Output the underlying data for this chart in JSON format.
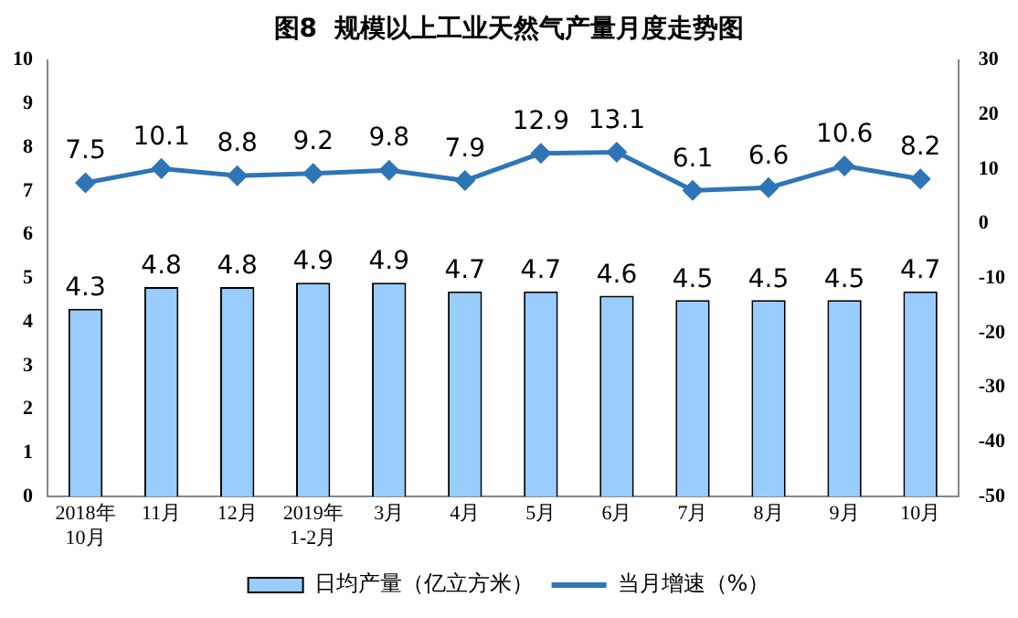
{
  "chart_data": {
    "type": "bar",
    "title": "图8  规模以上工业天然气产量月度走势图",
    "categories": [
      "2018年\n10月",
      "11月",
      "12月",
      "2019年\n1-2月",
      "3月",
      "4月",
      "5月",
      "6月",
      "7月",
      "8月",
      "9月",
      "10月"
    ],
    "series": [
      {
        "name": "日均产量（亿立方米）",
        "color": "#99ccff",
        "values": [
          4.3,
          4.8,
          4.8,
          4.9,
          4.9,
          4.7,
          4.7,
          4.6,
          4.5,
          4.5,
          4.5,
          4.7
        ]
      },
      {
        "name": "当月增速（%）",
        "type": "line",
        "axis": "y2",
        "color": "#2e75b6",
        "marker": "diamond",
        "values": [
          7.5,
          10.1,
          8.8,
          9.2,
          9.8,
          7.9,
          12.9,
          13.1,
          6.1,
          6.6,
          10.6,
          8.2
        ]
      }
    ],
    "ylim": [
      0,
      10
    ],
    "yticks": [
      0,
      1,
      2,
      3,
      4,
      5,
      6,
      7,
      8,
      9,
      10
    ],
    "y2lim": [
      -50,
      30
    ],
    "y2ticks": [
      -50,
      -40,
      -30,
      -20,
      -10,
      0,
      10,
      20,
      30
    ],
    "data_labels": true,
    "grid": false,
    "legend": "bottom"
  }
}
